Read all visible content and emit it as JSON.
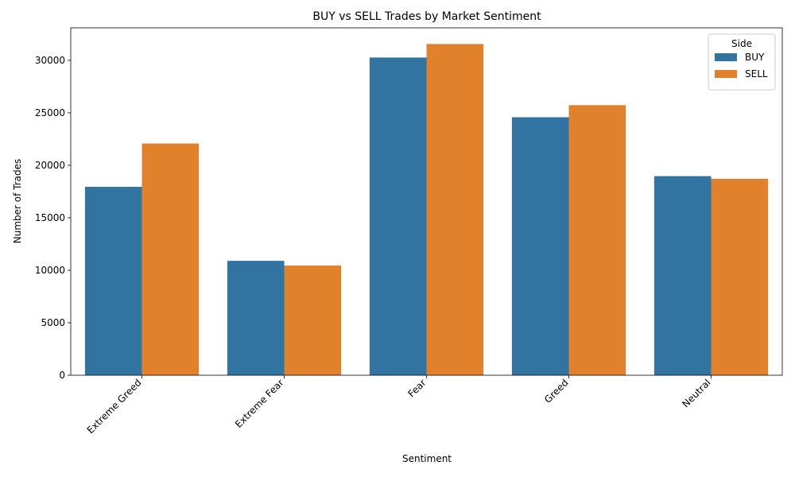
{
  "chart_data": {
    "type": "bar",
    "title": "BUY vs SELL Trades by Market Sentiment",
    "xlabel": "Sentiment",
    "ylabel": "Number of Trades",
    "categories": [
      "Extreme Greed",
      "Extreme Fear",
      "Fear",
      "Greed",
      "Neutral"
    ],
    "series": [
      {
        "name": "BUY",
        "color": "#3274a1",
        "values": [
          17950,
          10900,
          30270,
          24580,
          18970
        ]
      },
      {
        "name": "SELL",
        "color": "#e1812c",
        "values": [
          22080,
          10450,
          31560,
          25730,
          18720
        ]
      }
    ],
    "ylim": [
      0,
      33100
    ],
    "yticks": [
      0,
      5000,
      10000,
      15000,
      20000,
      25000,
      30000
    ],
    "legend": {
      "title": "Side",
      "placement": "top-right"
    },
    "grid": false
  }
}
